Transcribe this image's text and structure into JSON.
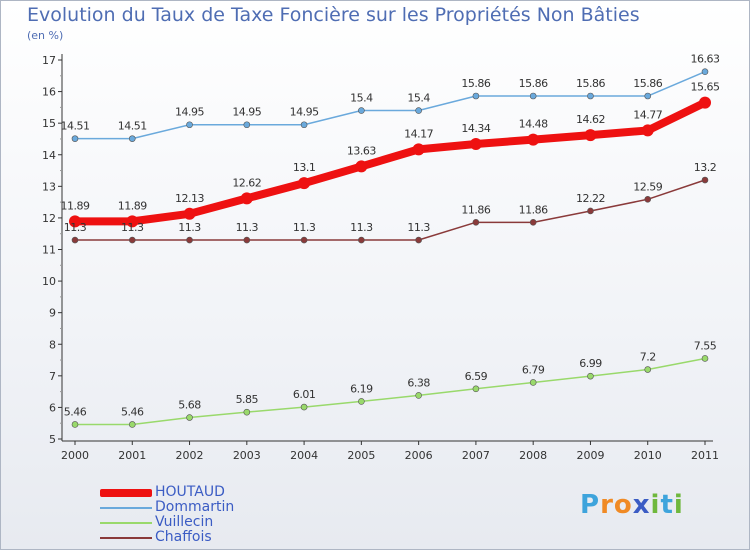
{
  "header": {
    "title": "Evolution du Taux de Taxe Foncière sur les Propriétés Non Bâties",
    "unit": "(en %)"
  },
  "logo": {
    "text": "Proxiti",
    "letter_colors": [
      "#3ea4dc",
      "#f08a24",
      "#f08a24",
      "#3b5cc4",
      "#6fb83d",
      "#3ea4dc",
      "#6fb83d"
    ]
  },
  "chart_data": {
    "type": "line",
    "title": "Evolution du Taux de Taxe Foncière sur les Propriétés Non Bâties",
    "ylabel": "(en %)",
    "xlabel": "",
    "x": [
      "2000",
      "2001",
      "2002",
      "2003",
      "2004",
      "2005",
      "2006",
      "2007",
      "2008",
      "2009",
      "2010",
      "2011"
    ],
    "ylim": [
      5,
      17
    ],
    "yticks": [
      5,
      6,
      7,
      8,
      9,
      10,
      11,
      12,
      13,
      14,
      15,
      16,
      17
    ],
    "grid": false,
    "legend_position": "bottom-left",
    "series": [
      {
        "name": "HOUTAUD",
        "color": "#ee1111",
        "emphasis": true,
        "values": [
          11.89,
          11.89,
          12.13,
          12.62,
          13.1,
          13.63,
          14.17,
          14.34,
          14.48,
          14.62,
          14.77,
          15.65
        ],
        "labels": [
          "11.89",
          "11.89",
          "12.13",
          "12.62",
          "13.1",
          "13.63",
          "14.17",
          "14.34",
          "14.48",
          "14.62",
          "14.77",
          "15.65"
        ]
      },
      {
        "name": "Dommartin",
        "color": "#6aa9dc",
        "values": [
          14.51,
          14.51,
          14.95,
          14.95,
          14.95,
          15.4,
          15.4,
          15.86,
          15.86,
          15.86,
          15.86,
          16.63
        ],
        "labels": [
          "14.51",
          "14.51",
          "14.95",
          "14.95",
          "14.95",
          "15.4",
          "15.4",
          "15.86",
          "15.86",
          "15.86",
          "15.86",
          "16.63"
        ]
      },
      {
        "name": "Vuillecin",
        "color": "#99d96b",
        "values": [
          5.46,
          5.46,
          5.68,
          5.85,
          6.01,
          6.19,
          6.38,
          6.59,
          6.79,
          6.99,
          7.2,
          7.55
        ],
        "labels": [
          "5.46",
          "5.46",
          "5.68",
          "5.85",
          "6.01",
          "6.19",
          "6.38",
          "6.59",
          "6.79",
          "6.99",
          "7.2",
          "7.55"
        ]
      },
      {
        "name": "Chaffois",
        "color": "#8a3a3a",
        "values": [
          11.3,
          11.3,
          11.3,
          11.3,
          11.3,
          11.3,
          11.3,
          11.86,
          11.86,
          12.22,
          12.59,
          13.2
        ],
        "labels": [
          "11.3",
          "11.3",
          "11.3",
          "11.3",
          "11.3",
          "11.3",
          "11.3",
          "11.86",
          "11.86",
          "12.22",
          "12.59",
          "13.2"
        ]
      }
    ]
  }
}
